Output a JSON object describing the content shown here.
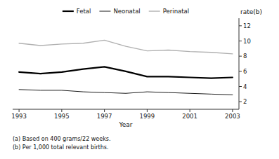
{
  "chart_data": {
    "type": "line",
    "x_label": "Year",
    "y_label": "rate(b)",
    "annotations": [
      "(a) Based on 400 grams/22 weeks.",
      "(b) Per 1,000 total relevant births."
    ],
    "x": [
      1993,
      1994,
      1995,
      1996,
      1997,
      1998,
      1999,
      2000,
      2001,
      2002,
      2003
    ],
    "series": [
      {
        "name": "Fetal",
        "color": "#000000",
        "values": [
          5.9,
          5.7,
          5.9,
          6.3,
          6.6,
          6.0,
          5.3,
          5.3,
          5.2,
          5.1,
          5.2
        ]
      },
      {
        "name": "Neonatal",
        "color": "#000000",
        "values": [
          3.6,
          3.5,
          3.5,
          3.3,
          3.2,
          3.1,
          3.3,
          3.2,
          3.1,
          3.0,
          2.9
        ]
      },
      {
        "name": "Perinatal",
        "color": "#b0b0b0",
        "values": [
          9.7,
          9.4,
          9.6,
          9.7,
          10.1,
          9.3,
          8.7,
          8.8,
          8.6,
          8.5,
          8.3
        ]
      }
    ],
    "xlim": [
      1992.7,
      2003.3
    ],
    "xticks": [
      1993,
      1995,
      1997,
      1999,
      2001,
      2003
    ],
    "ylim": [
      1,
      13
    ],
    "yticks": [
      2,
      4,
      6,
      8,
      10,
      12
    ],
    "grid": false,
    "legend": "top"
  }
}
